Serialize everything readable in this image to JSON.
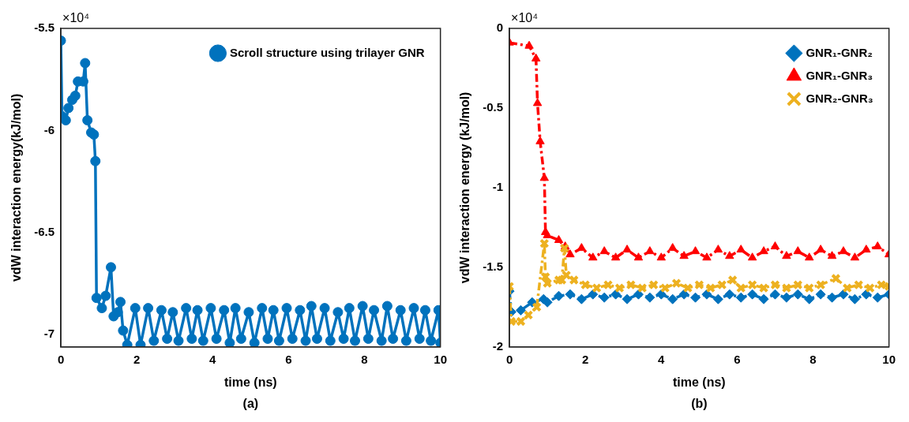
{
  "chart_data": [
    {
      "type": "line",
      "xlabel": "time (ns)",
      "ylabel": "vdW interaction energy(kJ/mol)",
      "annotations": [
        "×10⁴",
        "(a)"
      ],
      "xlim": [
        0,
        10
      ],
      "xticks": [
        0,
        2,
        4,
        6,
        8,
        10
      ],
      "ylim": [
        -7.06,
        -5.5
      ],
      "yticks": [
        {
          "value": -7,
          "label": "-7"
        },
        -6.5,
        {
          "value": -6,
          "label": "-6"
        },
        -5.5
      ],
      "grid": false,
      "legend": "top right",
      "marker": "circle",
      "line_style": "solid",
      "series": [
        {
          "name": "Scroll structure using trilayer GNR",
          "color": "#0072bd",
          "x": [
            0,
            0.03,
            0.13,
            0.2,
            0.3,
            0.38,
            0.45,
            0.59,
            0.64,
            0.7,
            0.8,
            0.87,
            0.91,
            0.94,
            1.08,
            1.18,
            1.32,
            1.39,
            1.5,
            1.57,
            1.64,
            1.75,
            1.96,
            2.1,
            2.3,
            2.45,
            2.65,
            2.8,
            2.95,
            3.1,
            3.3,
            3.45,
            3.6,
            3.75,
            3.95,
            4.1,
            4.3,
            4.45,
            4.6,
            4.75,
            4.95,
            5.1,
            5.3,
            5.45,
            5.6,
            5.75,
            5.95,
            6.1,
            6.3,
            6.45,
            6.6,
            6.75,
            6.95,
            7.1,
            7.3,
            7.45,
            7.6,
            7.75,
            7.95,
            8.1,
            8.25,
            8.45,
            8.6,
            8.75,
            8.95,
            9.1,
            9.3,
            9.45,
            9.6,
            9.75,
            9.95,
            10
          ],
          "values": [
            -5.56,
            -5.93,
            -5.95,
            -5.89,
            -5.85,
            -5.83,
            -5.76,
            -5.76,
            -5.67,
            -5.95,
            -6.01,
            -6.02,
            -6.15,
            -6.82,
            -6.87,
            -6.81,
            -6.67,
            -6.91,
            -6.89,
            -6.84,
            -6.98,
            -7.05,
            -6.87,
            -7.05,
            -6.87,
            -7.03,
            -6.88,
            -7.02,
            -6.89,
            -7.03,
            -6.87,
            -7.02,
            -6.88,
            -7.03,
            -6.87,
            -7.02,
            -6.88,
            -7.04,
            -6.87,
            -7.02,
            -6.89,
            -7.04,
            -6.87,
            -7.02,
            -6.88,
            -7.03,
            -6.87,
            -7.02,
            -6.88,
            -7.03,
            -6.86,
            -7.02,
            -6.87,
            -7.03,
            -6.89,
            -7.02,
            -6.87,
            -7.03,
            -6.86,
            -7.02,
            -6.88,
            -7.03,
            -6.86,
            -7.02,
            -6.88,
            -7.03,
            -6.87,
            -7.02,
            -6.88,
            -7.03,
            -6.88,
            -7.04
          ]
        }
      ]
    },
    {
      "type": "line",
      "xlabel": "time (ns)",
      "ylabel": "vdW interaction energy (kJ/mol)",
      "annotations": [
        "×10⁴",
        "(b)"
      ],
      "xlim": [
        0,
        10
      ],
      "xticks": [
        0,
        2,
        4,
        6,
        8,
        10
      ],
      "ylim": [
        -2,
        0
      ],
      "yticks": [
        {
          "value": -2,
          "label": "-2"
        },
        -1.5,
        {
          "value": -1,
          "label": "-1"
        },
        -0.5,
        0
      ],
      "grid": false,
      "legend": "top right",
      "line_style": "dashed",
      "series": [
        {
          "name": "GNR₁-GNR₂",
          "color": "#0072bd",
          "marker": "diamond",
          "x": [
            0,
            0.05,
            0.3,
            0.6,
            0.9,
            1.0,
            1.3,
            1.6,
            1.9,
            2.2,
            2.5,
            2.8,
            3.1,
            3.4,
            3.7,
            4.0,
            4.3,
            4.6,
            4.9,
            5.2,
            5.5,
            5.8,
            6.1,
            6.4,
            6.7,
            7.0,
            7.3,
            7.6,
            7.9,
            8.2,
            8.5,
            8.8,
            9.1,
            9.4,
            9.7,
            10
          ],
          "values": [
            -1.65,
            -1.78,
            -1.77,
            -1.72,
            -1.7,
            -1.72,
            -1.68,
            -1.67,
            -1.7,
            -1.67,
            -1.69,
            -1.67,
            -1.7,
            -1.67,
            -1.69,
            -1.67,
            -1.7,
            -1.67,
            -1.69,
            -1.67,
            -1.7,
            -1.67,
            -1.69,
            -1.67,
            -1.7,
            -1.67,
            -1.69,
            -1.67,
            -1.7,
            -1.67,
            -1.69,
            -1.67,
            -1.7,
            -1.67,
            -1.69,
            -1.67
          ]
        },
        {
          "name": "GNR₁-GNR₃",
          "color": "#ff0000",
          "marker": "triangle",
          "x": [
            0,
            0.52,
            0.7,
            0.74,
            0.81,
            0.92,
            0.95,
            1.0,
            1.3,
            1.47,
            1.6,
            1.9,
            2.2,
            2.5,
            2.8,
            3.1,
            3.4,
            3.7,
            4.0,
            4.3,
            4.6,
            4.9,
            5.2,
            5.5,
            5.8,
            6.1,
            6.4,
            6.7,
            7.0,
            7.3,
            7.6,
            7.9,
            8.2,
            8.5,
            8.8,
            9.1,
            9.4,
            9.7,
            10
          ],
          "values": [
            -0.09,
            -0.11,
            -0.19,
            -0.47,
            -0.71,
            -0.94,
            -1.28,
            -1.3,
            -1.33,
            -1.37,
            -1.42,
            -1.38,
            -1.44,
            -1.4,
            -1.44,
            -1.39,
            -1.44,
            -1.4,
            -1.44,
            -1.38,
            -1.43,
            -1.4,
            -1.44,
            -1.39,
            -1.43,
            -1.39,
            -1.44,
            -1.4,
            -1.37,
            -1.43,
            -1.4,
            -1.44,
            -1.39,
            -1.43,
            -1.4,
            -1.44,
            -1.39,
            -1.37,
            -1.42
          ]
        },
        {
          "name": "GNR₂-GNR₃",
          "color": "#edb120",
          "marker": "cross",
          "x": [
            0,
            0.05,
            0.3,
            0.5,
            0.72,
            0.92,
            0.95,
            1.0,
            1.3,
            1.38,
            1.45,
            1.5,
            1.7,
            2.0,
            2.3,
            2.6,
            2.9,
            3.2,
            3.5,
            3.8,
            4.1,
            4.4,
            4.7,
            5.0,
            5.3,
            5.6,
            5.88,
            6.1,
            6.4,
            6.7,
            7.0,
            7.3,
            7.6,
            7.9,
            8.2,
            8.6,
            8.9,
            9.2,
            9.5,
            9.8,
            10
          ],
          "values": [
            -1.62,
            -1.84,
            -1.84,
            -1.8,
            -1.75,
            -1.35,
            -1.56,
            -1.6,
            -1.58,
            -1.58,
            -1.38,
            -1.55,
            -1.58,
            -1.61,
            -1.63,
            -1.61,
            -1.63,
            -1.61,
            -1.63,
            -1.61,
            -1.63,
            -1.6,
            -1.63,
            -1.61,
            -1.63,
            -1.61,
            -1.58,
            -1.63,
            -1.61,
            -1.63,
            -1.61,
            -1.63,
            -1.61,
            -1.63,
            -1.61,
            -1.57,
            -1.63,
            -1.61,
            -1.63,
            -1.61,
            -1.62
          ]
        }
      ]
    }
  ]
}
